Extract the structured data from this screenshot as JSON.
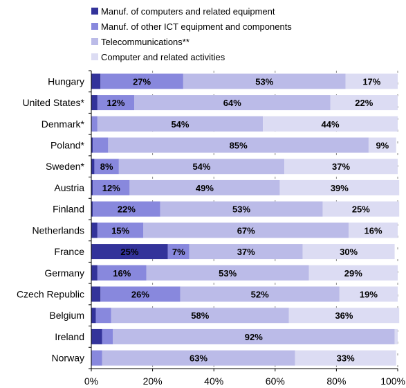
{
  "chart_data": {
    "type": "bar",
    "orientation": "horizontal",
    "stacked": true,
    "legend_position": "top",
    "grid": "vertical dashed",
    "xlim": [
      0,
      100
    ],
    "x_ticks": [
      "0%",
      "20%",
      "40%",
      "60%",
      "80%",
      "100%"
    ],
    "categories": [
      "Hungary",
      "United States*",
      "Denmark*",
      "Poland*",
      "Sweden*",
      "Austria",
      "Finland",
      "Netherlands",
      "France",
      "Germany",
      "Czech Republic",
      "Belgium",
      "Ireland",
      "Norway"
    ],
    "series": [
      {
        "name": "Manuf. of computers and related equipment",
        "color": "#33339a",
        "values": [
          3,
          2,
          0,
          0.5,
          1,
          0.5,
          0.5,
          2,
          25,
          2,
          3,
          1.5,
          3.5,
          0
        ],
        "labels": [
          "",
          "",
          "",
          "",
          "",
          "",
          "",
          "",
          "25%",
          "",
          "",
          "",
          "",
          ""
        ]
      },
      {
        "name": "Manuf. of other ICT equipment and components",
        "color": "#8888dd",
        "values": [
          27,
          12,
          2,
          5,
          8,
          12,
          22,
          15,
          7,
          16,
          26,
          5,
          3.5,
          3.5
        ],
        "labels": [
          "27%",
          "12%",
          "",
          "",
          "8%",
          "12%",
          "22%",
          "15%",
          "7%",
          "16%",
          "26%",
          "",
          "",
          ""
        ]
      },
      {
        "name": "Telecommunications**",
        "color": "#bbbbe8",
        "values": [
          53,
          64,
          54,
          85,
          54,
          49,
          53,
          67,
          37,
          53,
          52,
          58,
          92,
          63
        ],
        "labels": [
          "53%",
          "64%",
          "54%",
          "85%",
          "54%",
          "49%",
          "53%",
          "67%",
          "37%",
          "53%",
          "52%",
          "58%",
          "92%",
          "63%"
        ]
      },
      {
        "name": "Computer and related activities",
        "color": "#dcdcf3",
        "values": [
          17,
          22,
          44,
          9,
          37,
          39,
          25,
          16,
          30,
          29,
          19,
          36,
          1,
          33
        ],
        "labels": [
          "17%",
          "22%",
          "44%",
          "9%",
          "37%",
          "39%",
          "25%",
          "16%",
          "30%",
          "29%",
          "19%",
          "36%",
          "",
          "33%"
        ]
      }
    ]
  }
}
